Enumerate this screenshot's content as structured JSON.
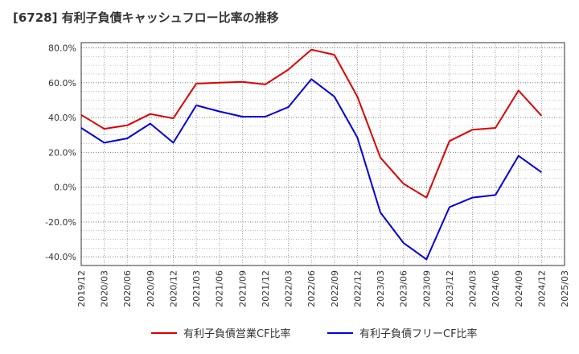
{
  "chart_data": {
    "type": "line",
    "title": "[6728]  有利子負債キャッシュフロー比率の推移",
    "xlabel": "",
    "ylabel": "",
    "ylim": [
      -45,
      83
    ],
    "y_ticks": [
      "80.0%",
      "60.0%",
      "40.0%",
      "20.0%",
      "0.0%",
      "-20.0%",
      "-40.0%"
    ],
    "y_tick_values": [
      80,
      60,
      40,
      20,
      0,
      -20,
      -40
    ],
    "categories": [
      "2019/12",
      "2020/03",
      "2020/06",
      "2020/09",
      "2020/12",
      "2021/03",
      "2021/06",
      "2021/09",
      "2021/12",
      "2022/03",
      "2022/06",
      "2022/09",
      "2022/12",
      "2023/03",
      "2023/06",
      "2023/09",
      "2023/12",
      "2024/03",
      "2024/06",
      "2024/09",
      "2024/12",
      "2025/03"
    ],
    "grid": true,
    "legend_position": "bottom",
    "series": [
      {
        "name": "有利子負債営業CF比率",
        "color": "#dd0000",
        "values": [
          41.5,
          33.5,
          35.5,
          42.0,
          39.5,
          59.5,
          60.0,
          60.5,
          59.0,
          67.5,
          79.0,
          76.0,
          52.0,
          17.0,
          2.0,
          -6.0,
          26.5,
          33.0,
          34.0,
          55.5,
          41.0,
          null
        ]
      },
      {
        "name": "有利子負債フリーCF比率",
        "color": "#0000dd",
        "values": [
          34.0,
          25.5,
          28.0,
          36.5,
          25.5,
          47.0,
          43.5,
          40.5,
          40.5,
          46.0,
          62.0,
          52.0,
          28.5,
          -14.5,
          -32.0,
          -41.5,
          -11.5,
          -6.0,
          -4.5,
          18.0,
          8.5,
          null
        ]
      }
    ]
  }
}
